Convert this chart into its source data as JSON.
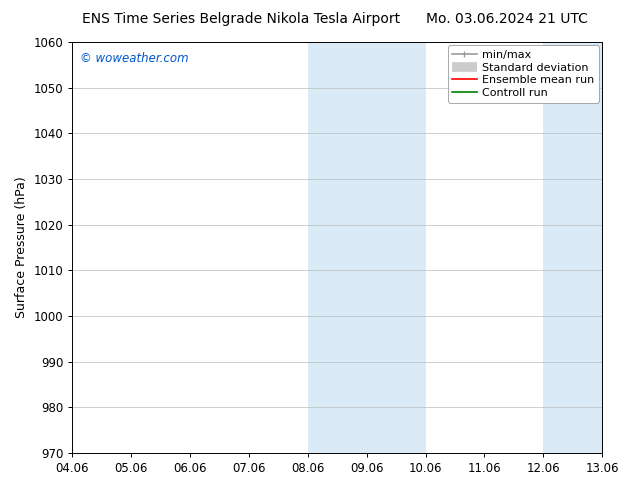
{
  "title_left": "ENS Time Series Belgrade Nikola Tesla Airport",
  "title_right": "Mo. 03.06.2024 21 UTC",
  "ylabel": "Surface Pressure (hPa)",
  "ylim": [
    970,
    1060
  ],
  "yticks": [
    970,
    980,
    990,
    1000,
    1010,
    1020,
    1030,
    1040,
    1050,
    1060
  ],
  "xtick_labels": [
    "04.06",
    "05.06",
    "06.06",
    "07.06",
    "08.06",
    "09.06",
    "10.06",
    "11.06",
    "12.06",
    "13.06"
  ],
  "shaded_regions": [
    {
      "xmin": 4,
      "xmax": 6,
      "color": "#daeaf6"
    },
    {
      "xmin": 8,
      "xmax": 9,
      "color": "#daeaf6"
    }
  ],
  "watermark": "© woweather.com",
  "watermark_color": "#0055cc",
  "background_color": "#ffffff",
  "plot_bg_color": "#ffffff",
  "grid_color": "#bbbbbb",
  "title_fontsize": 10,
  "tick_fontsize": 8.5,
  "ylabel_fontsize": 9,
  "legend_fontsize": 8
}
